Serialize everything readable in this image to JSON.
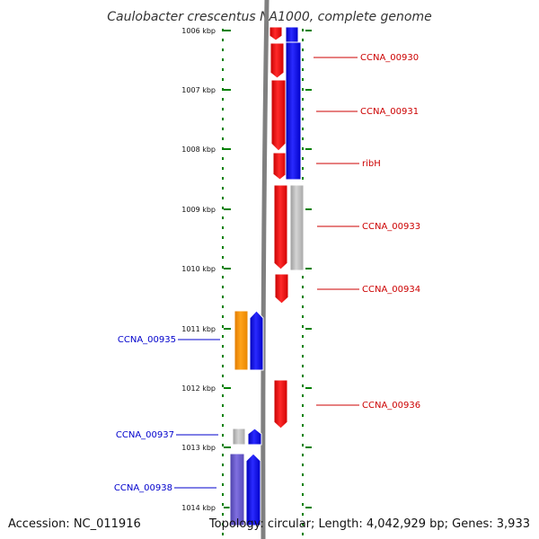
{
  "title": "Caulobacter crescentus NA1000, complete genome",
  "footer": {
    "accession": "Accession: NC_011916",
    "summary": "Topology: circular; Length: 4,042,929 bp; Genes: 3,933"
  },
  "ticks": [
    "1006 kbp",
    "1007 kbp",
    "1008 kbp",
    "1009 kbp",
    "1010 kbp",
    "1011 kbp",
    "1012 kbp",
    "1013 kbp",
    "1014 kbp"
  ],
  "genes_right": [
    "CCNA_00930",
    "CCNA_00931",
    "ribH",
    "CCNA_00933",
    "CCNA_00934",
    "CCNA_00936"
  ],
  "genes_left": [
    "CCNA_00935",
    "CCNA_00937",
    "CCNA_00938"
  ],
  "colors": {
    "red": "#ff0000",
    "blue": "#0000ff",
    "orange": "#ff9900",
    "gray": "#b8b8b8",
    "purple": "#6a5acd",
    "axis": "#808080",
    "dots": "#008000",
    "label_right": "#cc0000",
    "label_left": "#0000cc"
  }
}
